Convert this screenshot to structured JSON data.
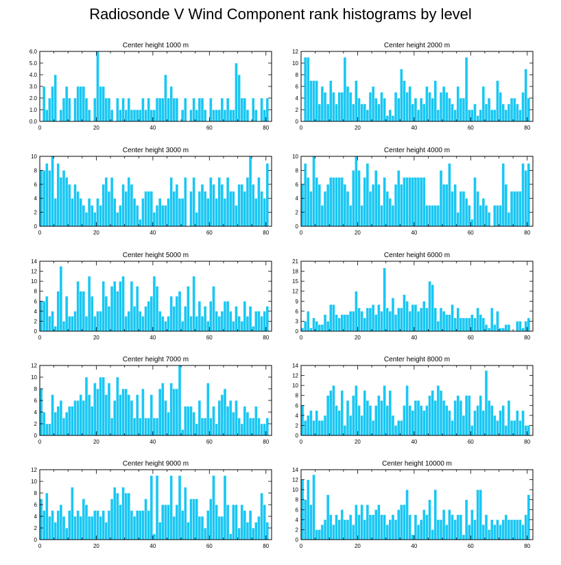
{
  "title": "Radiosonde V Wind Component rank histograms by level",
  "colors": {
    "bar": "#19c7f3",
    "frame": "#000000"
  },
  "chart_data": [
    {
      "type": "bar",
      "title": "Center height 1000 m",
      "xlim": [
        0,
        82
      ],
      "ylim": [
        0,
        6
      ],
      "xticks": [
        0,
        20,
        40,
        60,
        80
      ],
      "yticks": [
        0,
        1,
        2,
        3,
        4,
        5,
        6
      ],
      "ytick_labels": [
        "0.0",
        "1.0",
        "2.0",
        "3.0",
        "4.0",
        "5.0",
        "6.0"
      ],
      "values": [
        0,
        3,
        1,
        2,
        3,
        4,
        0,
        1,
        2,
        3,
        2,
        0,
        2,
        3,
        3,
        3,
        2,
        1,
        0,
        2,
        6,
        3,
        3,
        2,
        2,
        1,
        0,
        2,
        1,
        2,
        1,
        2,
        1,
        1,
        1,
        1,
        2,
        1,
        2,
        1,
        1,
        2,
        2,
        2,
        4,
        2,
        3,
        2,
        2,
        0,
        1,
        2,
        0,
        1,
        2,
        1,
        2,
        2,
        1,
        0,
        2,
        1,
        1,
        1,
        2,
        1,
        2,
        1,
        1,
        5,
        4,
        2,
        2,
        1,
        0,
        2,
        1,
        0,
        2,
        1,
        2,
        0
      ]
    },
    {
      "type": "bar",
      "title": "Center height 2000 m",
      "xlim": [
        0,
        82
      ],
      "ylim": [
        0,
        12
      ],
      "xticks": [
        0,
        20,
        40,
        60,
        80
      ],
      "yticks": [
        0,
        2,
        4,
        6,
        8,
        10,
        12
      ],
      "ytick_labels": [
        "0",
        "2",
        "4",
        "6",
        "8",
        "10",
        "12"
      ],
      "values": [
        0,
        11,
        11,
        7,
        7,
        7,
        3,
        6,
        5,
        3,
        7,
        5,
        3,
        5,
        5,
        11,
        6,
        5,
        3,
        7,
        4,
        3,
        3,
        2,
        5,
        6,
        4,
        3,
        5,
        4,
        1,
        2,
        1,
        5,
        4,
        9,
        7,
        5,
        6,
        3,
        4,
        2,
        4,
        3,
        6,
        5,
        4,
        7,
        2,
        5,
        6,
        5,
        4,
        3,
        2,
        6,
        4,
        4,
        11,
        2,
        2,
        3,
        1,
        2,
        6,
        3,
        4,
        2,
        2,
        7,
        5,
        3,
        2,
        3,
        4,
        4,
        3,
        2,
        5,
        9,
        4,
        0
      ]
    },
    {
      "type": "bar",
      "title": "Center height 3000 m",
      "xlim": [
        0,
        82
      ],
      "ylim": [
        0,
        10
      ],
      "xticks": [
        0,
        20,
        40,
        60,
        80
      ],
      "yticks": [
        0,
        2,
        4,
        6,
        8,
        10
      ],
      "ytick_labels": [
        "0",
        "2",
        "4",
        "6",
        "8",
        "10"
      ],
      "values": [
        8,
        8,
        9,
        8,
        10,
        4,
        9,
        7,
        8,
        7,
        6,
        4,
        6,
        5,
        4,
        3,
        2,
        4,
        3,
        2,
        4,
        3,
        6,
        7,
        5,
        7,
        4,
        2,
        3,
        6,
        5,
        7,
        6,
        4,
        3,
        1,
        4,
        5,
        5,
        5,
        2,
        3,
        4,
        3,
        3,
        4,
        7,
        5,
        6,
        4,
        4,
        7,
        0,
        5,
        7,
        2,
        5,
        6,
        5,
        4,
        7,
        6,
        4,
        7,
        6,
        4,
        7,
        5,
        5,
        3,
        6,
        6,
        5,
        7,
        10,
        6,
        4,
        7,
        5,
        4,
        9,
        0
      ]
    },
    {
      "type": "bar",
      "title": "Center height 4000 m",
      "xlim": [
        0,
        82
      ],
      "ylim": [
        0,
        10
      ],
      "xticks": [
        0,
        20,
        40,
        60,
        80
      ],
      "yticks": [
        0,
        2,
        4,
        6,
        8,
        10
      ],
      "ytick_labels": [
        "0",
        "2",
        "4",
        "6",
        "8",
        "10"
      ],
      "values": [
        6,
        9,
        7,
        5,
        10,
        7,
        6,
        3,
        5,
        6,
        7,
        7,
        7,
        7,
        7,
        6,
        5,
        3,
        8,
        10,
        8,
        3,
        7,
        9,
        5,
        6,
        8,
        6,
        3,
        7,
        5,
        4,
        3,
        6,
        8,
        6,
        7,
        7,
        7,
        7,
        7,
        7,
        7,
        7,
        3,
        3,
        3,
        3,
        3,
        8,
        6,
        6,
        9,
        5,
        6,
        2,
        5,
        5,
        4,
        3,
        1,
        7,
        5,
        3,
        4,
        3,
        2,
        0,
        3,
        3,
        3,
        9,
        6,
        2,
        5,
        5,
        5,
        5,
        9,
        8,
        9,
        0
      ]
    },
    {
      "type": "bar",
      "title": "Center height 5000 m",
      "xlim": [
        0,
        82
      ],
      "ylim": [
        0,
        14
      ],
      "xticks": [
        0,
        20,
        40,
        60,
        80
      ],
      "yticks": [
        0,
        2,
        4,
        6,
        8,
        10,
        12,
        14
      ],
      "ytick_labels": [
        "0",
        "2",
        "4",
        "6",
        "8",
        "10",
        "12",
        "14"
      ],
      "values": [
        6,
        6,
        7,
        3,
        4,
        1,
        8,
        13,
        2,
        7,
        3,
        3,
        4,
        10,
        8,
        8,
        3,
        11,
        7,
        3,
        4,
        4,
        10,
        7,
        5,
        9,
        10,
        8,
        10,
        11,
        3,
        4,
        10,
        5,
        9,
        4,
        3,
        5,
        6,
        7,
        11,
        9,
        4,
        3,
        2,
        3,
        7,
        5,
        7,
        8,
        2,
        5,
        9,
        3,
        11,
        3,
        6,
        3,
        5,
        2,
        6,
        9,
        4,
        3,
        4,
        6,
        6,
        4,
        2,
        5,
        3,
        2,
        6,
        3,
        5,
        1,
        4,
        4,
        3,
        4,
        5,
        0
      ]
    },
    {
      "type": "bar",
      "title": "Center height 6000 m",
      "xlim": [
        0,
        82
      ],
      "ylim": [
        0,
        21
      ],
      "xticks": [
        0,
        20,
        40,
        60,
        80
      ],
      "yticks": [
        0,
        3,
        6,
        9,
        12,
        15,
        18,
        21
      ],
      "ytick_labels": [
        "0",
        "3",
        "6",
        "9",
        "12",
        "15",
        "18",
        "21"
      ],
      "values": [
        1,
        3,
        6,
        1,
        4,
        3,
        2,
        2,
        5,
        3,
        8,
        8,
        5,
        4,
        5,
        5,
        5,
        6,
        6,
        12,
        7,
        6,
        4,
        7,
        7,
        8,
        5,
        8,
        6,
        19,
        7,
        6,
        10,
        5,
        7,
        7,
        11,
        9,
        6,
        8,
        8,
        6,
        7,
        9,
        7,
        15,
        14,
        7,
        3,
        7,
        6,
        5,
        5,
        8,
        4,
        7,
        4,
        4,
        4,
        4,
        5,
        4,
        7,
        5,
        4,
        2,
        1,
        7,
        2,
        6,
        1,
        1,
        2,
        2,
        0,
        0,
        3,
        3,
        1,
        3,
        4,
        0
      ]
    },
    {
      "type": "bar",
      "title": "Center height 7000 m",
      "xlim": [
        0,
        82
      ],
      "ylim": [
        0,
        12
      ],
      "xticks": [
        0,
        20,
        40,
        60,
        80
      ],
      "yticks": [
        0,
        2,
        4,
        6,
        8,
        10,
        12
      ],
      "ytick_labels": [
        "0",
        "2",
        "4",
        "6",
        "8",
        "10",
        "12"
      ],
      "values": [
        8,
        4,
        2,
        2,
        7,
        4,
        5,
        6,
        3,
        4,
        5,
        5,
        6,
        6,
        7,
        6,
        10,
        7,
        5,
        9,
        8,
        10,
        10,
        7,
        9,
        3,
        6,
        10,
        7,
        8,
        8,
        7,
        6,
        3,
        7,
        3,
        8,
        3,
        3,
        7,
        3,
        3,
        8,
        9,
        6,
        4,
        9,
        8,
        8,
        12,
        1,
        5,
        5,
        5,
        4,
        2,
        6,
        3,
        3,
        9,
        3,
        5,
        2,
        6,
        7,
        8,
        5,
        6,
        4,
        6,
        3,
        2,
        5,
        4,
        3,
        3,
        5,
        3,
        2,
        2,
        3,
        0
      ]
    },
    {
      "type": "bar",
      "title": "Center height 8000 m",
      "xlim": [
        0,
        82
      ],
      "ylim": [
        0,
        14
      ],
      "xticks": [
        0,
        20,
        40,
        60,
        80
      ],
      "yticks": [
        0,
        2,
        4,
        6,
        8,
        10,
        12,
        14
      ],
      "ytick_labels": [
        "0",
        "2",
        "4",
        "6",
        "8",
        "10",
        "12",
        "14"
      ],
      "values": [
        6,
        3,
        4,
        5,
        3,
        5,
        3,
        3,
        4,
        8,
        9,
        10,
        6,
        5,
        9,
        2,
        7,
        4,
        8,
        10,
        6,
        4,
        9,
        7,
        6,
        3,
        6,
        8,
        7,
        10,
        6,
        9,
        4,
        2,
        3,
        3,
        6,
        10,
        6,
        5,
        7,
        7,
        6,
        5,
        6,
        8,
        9,
        7,
        10,
        9,
        7,
        6,
        5,
        3,
        7,
        8,
        7,
        4,
        8,
        8,
        2,
        5,
        6,
        8,
        5,
        13,
        7,
        6,
        4,
        3,
        5,
        6,
        2,
        7,
        3,
        3,
        5,
        3,
        5,
        2,
        2,
        0
      ]
    },
    {
      "type": "bar",
      "title": "Center height 9000 m",
      "xlim": [
        0,
        82
      ],
      "ylim": [
        0,
        12
      ],
      "xticks": [
        0,
        20,
        40,
        60,
        80
      ],
      "yticks": [
        0,
        2,
        4,
        6,
        8,
        10,
        12
      ],
      "ytick_labels": [
        "0",
        "2",
        "4",
        "6",
        "8",
        "10",
        "12"
      ],
      "values": [
        7,
        5,
        8,
        4,
        5,
        3,
        5,
        6,
        4,
        2,
        5,
        9,
        4,
        5,
        4,
        7,
        6,
        4,
        4,
        5,
        5,
        4,
        5,
        3,
        5,
        7,
        9,
        8,
        6,
        9,
        8,
        8,
        5,
        4,
        5,
        5,
        5,
        7,
        5,
        11,
        1,
        11,
        3,
        6,
        6,
        6,
        11,
        4,
        6,
        11,
        5,
        9,
        3,
        7,
        7,
        7,
        4,
        4,
        2,
        5,
        7,
        11,
        6,
        4,
        4,
        11,
        6,
        1,
        6,
        6,
        2,
        6,
        5,
        3,
        5,
        2,
        3,
        4,
        8,
        6,
        3,
        0
      ]
    },
    {
      "type": "bar",
      "title": "Center height 10000 m",
      "xlim": [
        0,
        82
      ],
      "ylim": [
        0,
        14
      ],
      "xticks": [
        0,
        20,
        40,
        60,
        80
      ],
      "yticks": [
        0,
        2,
        4,
        6,
        8,
        10,
        12,
        14
      ],
      "ytick_labels": [
        "0",
        "2",
        "4",
        "6",
        "8",
        "10",
        "12",
        "14"
      ],
      "values": [
        12,
        8,
        12,
        7,
        13,
        2,
        2,
        3,
        4,
        9,
        5,
        3,
        5,
        4,
        6,
        4,
        4,
        5,
        3,
        7,
        5,
        7,
        4,
        7,
        5,
        5,
        6,
        7,
        5,
        5,
        3,
        4,
        5,
        4,
        6,
        7,
        7,
        10,
        5,
        1,
        5,
        3,
        4,
        6,
        5,
        8,
        2,
        10,
        4,
        4,
        6,
        3,
        6,
        5,
        4,
        5,
        5,
        1,
        8,
        3,
        6,
        4,
        10,
        10,
        3,
        5,
        2,
        4,
        3,
        4,
        3,
        4,
        5,
        4,
        4,
        4,
        4,
        4,
        3,
        5,
        9,
        0
      ]
    }
  ]
}
